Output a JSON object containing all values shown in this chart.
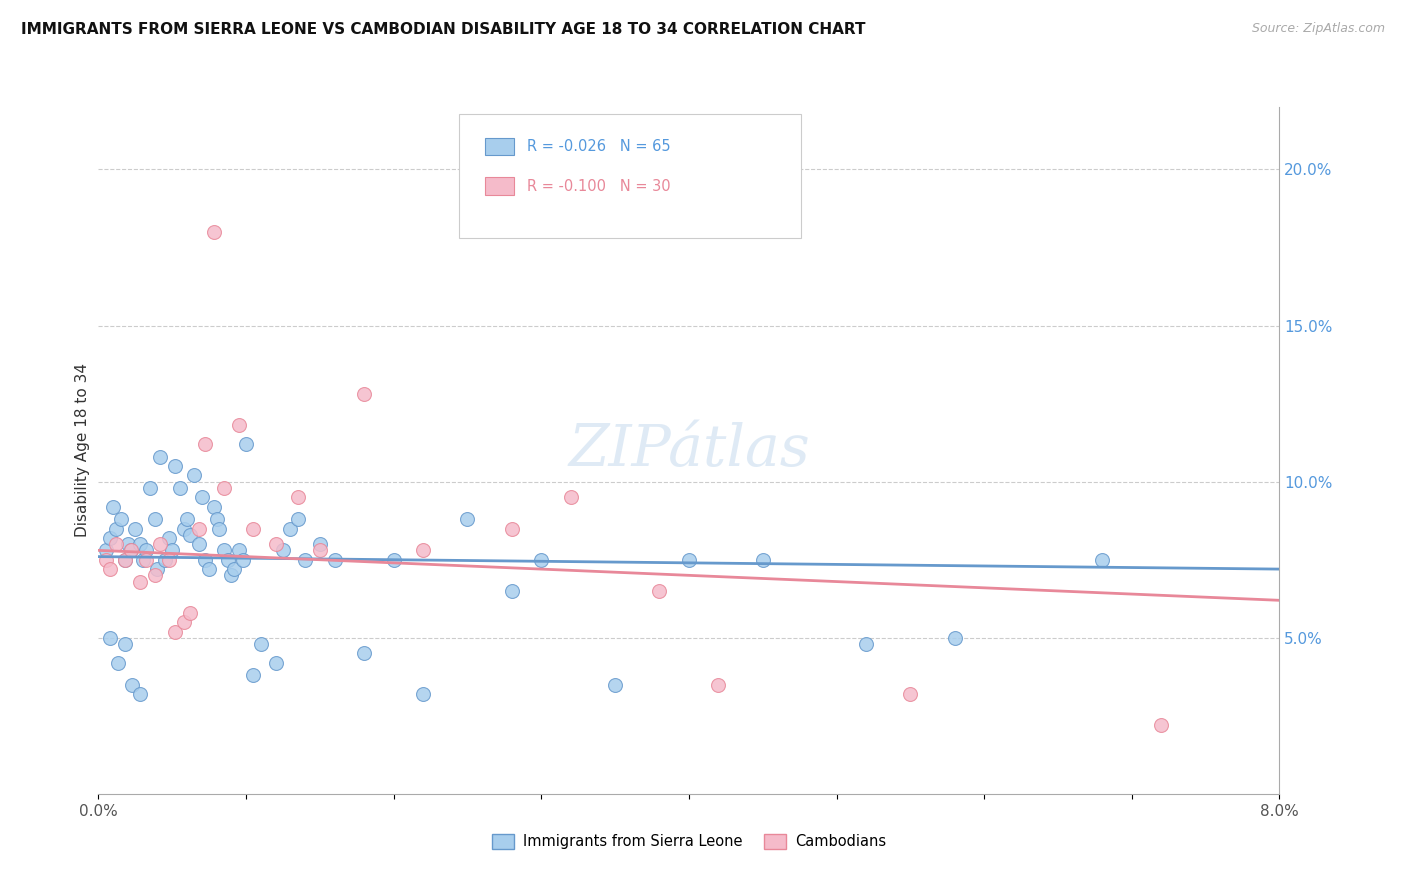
{
  "title": "IMMIGRANTS FROM SIERRA LEONE VS CAMBODIAN DISABILITY AGE 18 TO 34 CORRELATION CHART",
  "source": "Source: ZipAtlas.com",
  "ylabel": "Disability Age 18 to 34",
  "right_ytick_vals": [
    5.0,
    10.0,
    15.0,
    20.0
  ],
  "xmin": 0.0,
  "xmax": 8.0,
  "ymin": 0.0,
  "ymax": 22.0,
  "legend1_r": "-0.026",
  "legend1_n": "65",
  "legend2_r": "-0.100",
  "legend2_n": "30",
  "legend_label1": "Immigrants from Sierra Leone",
  "legend_label2": "Cambodians",
  "color_blue": "#A8CEED",
  "color_pink": "#F5BBCA",
  "color_blue_dark": "#6699CC",
  "color_pink_dark": "#E88899",
  "watermark": "ZIPátlas",
  "sl_x": [
    0.05,
    0.08,
    0.1,
    0.12,
    0.15,
    0.18,
    0.2,
    0.22,
    0.25,
    0.28,
    0.3,
    0.32,
    0.35,
    0.38,
    0.4,
    0.42,
    0.45,
    0.48,
    0.5,
    0.52,
    0.55,
    0.58,
    0.6,
    0.62,
    0.65,
    0.68,
    0.7,
    0.72,
    0.75,
    0.78,
    0.8,
    0.82,
    0.85,
    0.88,
    0.9,
    0.92,
    0.95,
    0.98,
    1.0,
    1.05,
    1.1,
    1.2,
    1.25,
    1.3,
    1.35,
    1.4,
    1.5,
    1.6,
    1.8,
    2.0,
    2.2,
    2.5,
    2.8,
    3.0,
    3.5,
    4.0,
    4.5,
    5.2,
    5.8,
    6.8,
    0.08,
    0.13,
    0.18,
    0.23,
    0.28
  ],
  "sl_y": [
    7.8,
    8.2,
    9.2,
    8.5,
    8.8,
    7.5,
    8.0,
    7.8,
    8.5,
    8.0,
    7.5,
    7.8,
    9.8,
    8.8,
    7.2,
    10.8,
    7.5,
    8.2,
    7.8,
    10.5,
    9.8,
    8.5,
    8.8,
    8.3,
    10.2,
    8.0,
    9.5,
    7.5,
    7.2,
    9.2,
    8.8,
    8.5,
    7.8,
    7.5,
    7.0,
    7.2,
    7.8,
    7.5,
    11.2,
    3.8,
    4.8,
    4.2,
    7.8,
    8.5,
    8.8,
    7.5,
    8.0,
    7.5,
    4.5,
    7.5,
    3.2,
    8.8,
    6.5,
    7.5,
    3.5,
    7.5,
    7.5,
    4.8,
    5.0,
    7.5,
    5.0,
    4.2,
    4.8,
    3.5,
    3.2
  ],
  "cam_x": [
    0.05,
    0.08,
    0.12,
    0.18,
    0.22,
    0.28,
    0.32,
    0.38,
    0.42,
    0.48,
    0.52,
    0.58,
    0.62,
    0.68,
    0.72,
    0.78,
    0.85,
    0.95,
    1.05,
    1.2,
    1.35,
    1.5,
    1.8,
    2.2,
    2.8,
    3.2,
    3.8,
    4.2,
    5.5,
    7.2
  ],
  "cam_y": [
    7.5,
    7.2,
    8.0,
    7.5,
    7.8,
    6.8,
    7.5,
    7.0,
    8.0,
    7.5,
    5.2,
    5.5,
    5.8,
    8.5,
    11.2,
    18.0,
    9.8,
    11.8,
    8.5,
    8.0,
    9.5,
    7.8,
    12.8,
    7.8,
    8.5,
    9.5,
    6.5,
    3.5,
    3.2,
    2.2
  ],
  "sl_trend_x": [
    0.0,
    8.0
  ],
  "sl_trend_y": [
    7.6,
    7.2
  ],
  "cam_trend_x": [
    0.0,
    8.0
  ],
  "cam_trend_y": [
    7.8,
    6.2
  ]
}
